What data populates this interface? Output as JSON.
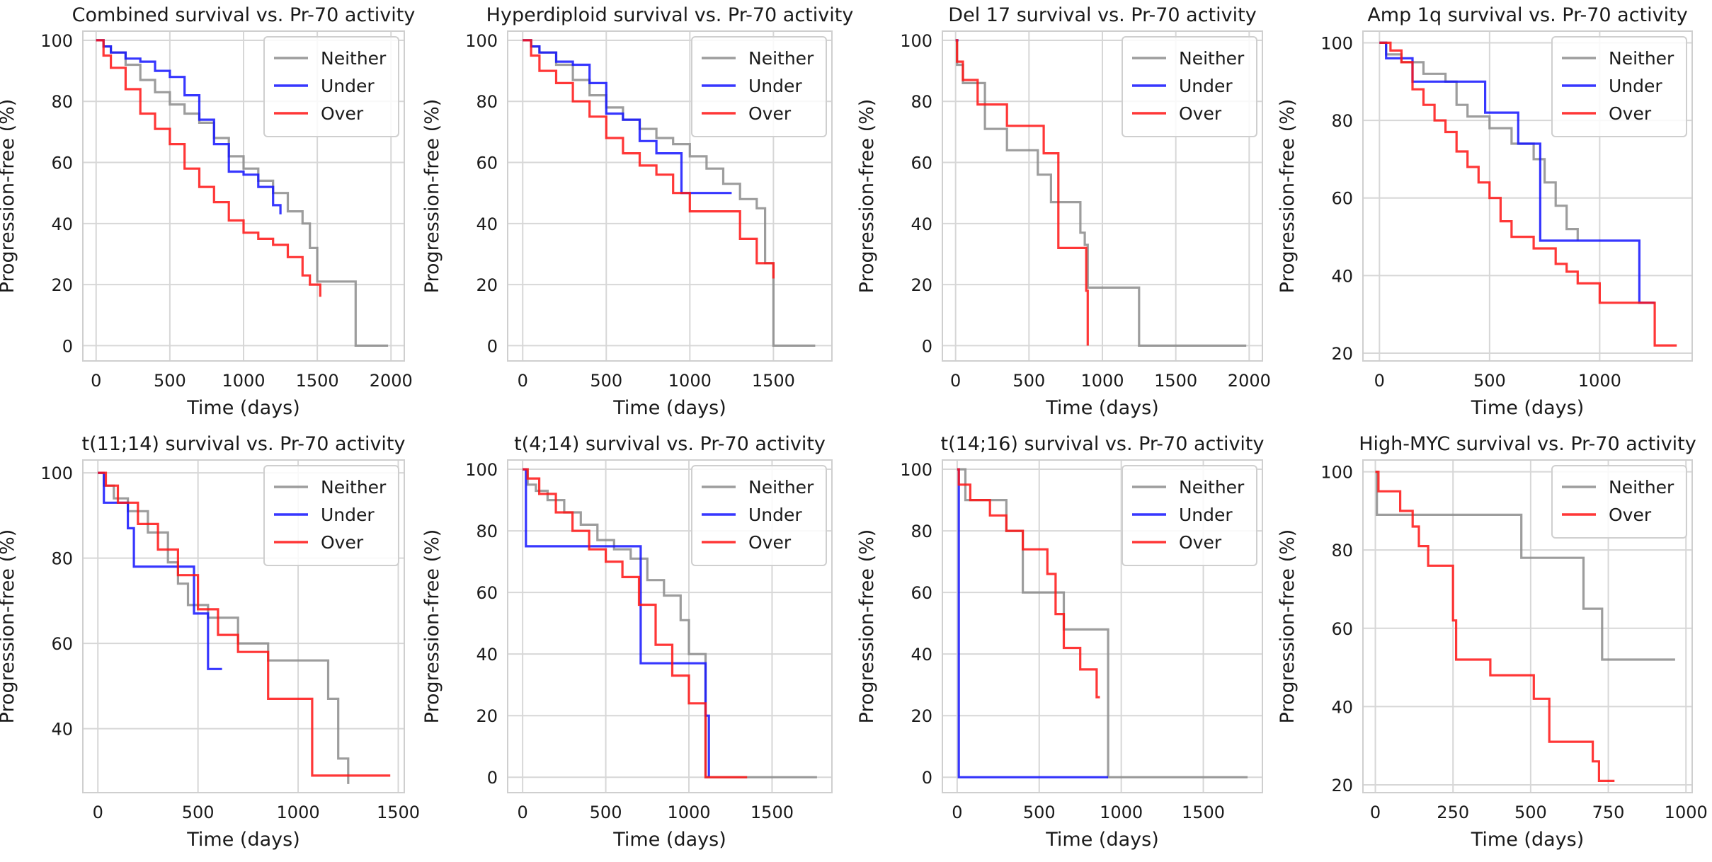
{
  "colors": {
    "neither": "#8c8c8c",
    "under": "#1414ff",
    "over": "#ff1414",
    "grid": "#d7d7d7",
    "frame": "#cfcfcf"
  },
  "chart_data": [
    {
      "type": "line",
      "step": true,
      "title": "Combined survival vs. Pr-70 activity",
      "xlabel": "Time (days)",
      "ylabel": "Progression-free (%)",
      "xlim": [
        -90,
        2090
      ],
      "ylim": [
        -5,
        103
      ],
      "xticks": [
        0,
        500,
        1000,
        1500,
        2000
      ],
      "yticks": [
        0,
        20,
        40,
        60,
        80,
        100
      ],
      "legend": [
        "Neither",
        "Under",
        "Over"
      ],
      "legend_position": "top-right",
      "series": [
        {
          "name": "Neither",
          "x": [
            0,
            50,
            100,
            200,
            300,
            400,
            500,
            600,
            700,
            800,
            900,
            1000,
            1100,
            1200,
            1300,
            1400,
            1450,
            1500,
            1750,
            1760,
            1980
          ],
          "y": [
            100,
            98,
            96,
            92,
            87,
            83,
            79,
            76,
            73,
            68,
            62,
            58,
            54,
            50,
            44,
            40,
            32,
            21,
            21,
            0,
            0
          ]
        },
        {
          "name": "Under",
          "x": [
            0,
            50,
            100,
            200,
            300,
            400,
            500,
            600,
            700,
            800,
            900,
            1000,
            1100,
            1200,
            1250
          ],
          "y": [
            100,
            98,
            96,
            94,
            93,
            90,
            88,
            82,
            74,
            66,
            57,
            56,
            52,
            46,
            43
          ]
        },
        {
          "name": "Over",
          "x": [
            0,
            50,
            100,
            200,
            300,
            400,
            500,
            600,
            700,
            800,
            900,
            1000,
            1100,
            1200,
            1300,
            1400,
            1450,
            1520
          ],
          "y": [
            100,
            95,
            91,
            84,
            76,
            71,
            66,
            58,
            52,
            47,
            41,
            37,
            35,
            33,
            29,
            23,
            20,
            16
          ]
        }
      ]
    },
    {
      "type": "line",
      "step": true,
      "title": "Hyperdiploid survival vs. Pr-70 activity",
      "xlabel": "Time (days)",
      "ylabel": "Progression-free (%)",
      "xlim": [
        -90,
        1850
      ],
      "ylim": [
        -5,
        103
      ],
      "xticks": [
        0,
        500,
        1000,
        1500
      ],
      "yticks": [
        0,
        20,
        40,
        60,
        80,
        100
      ],
      "legend": [
        "Neither",
        "Under",
        "Over"
      ],
      "legend_position": "top-right",
      "series": [
        {
          "name": "Neither",
          "x": [
            0,
            50,
            100,
            200,
            300,
            400,
            500,
            600,
            700,
            800,
            900,
            1000,
            1100,
            1200,
            1300,
            1400,
            1450,
            1500,
            1750
          ],
          "y": [
            100,
            98,
            96,
            92,
            87,
            82,
            78,
            74,
            71,
            68,
            66,
            62,
            58,
            53,
            48,
            45,
            27,
            0,
            0
          ]
        },
        {
          "name": "Under",
          "x": [
            0,
            50,
            100,
            200,
            300,
            400,
            500,
            600,
            700,
            800,
            900,
            950,
            1250
          ],
          "y": [
            100,
            98,
            96,
            93,
            92,
            86,
            76,
            74,
            67,
            63,
            63,
            50,
            50
          ]
        },
        {
          "name": "Over",
          "x": [
            0,
            50,
            100,
            200,
            300,
            400,
            500,
            600,
            700,
            800,
            900,
            1000,
            1100,
            1200,
            1300,
            1400,
            1500
          ],
          "y": [
            100,
            95,
            90,
            86,
            80,
            75,
            68,
            63,
            59,
            56,
            50,
            44,
            44,
            44,
            35,
            27,
            22
          ]
        }
      ]
    },
    {
      "type": "line",
      "step": true,
      "title": "Del 17 survival vs. Pr-70 activity",
      "xlabel": "Time (days)",
      "ylabel": "Progression-free (%)",
      "xlim": [
        -90,
        2090
      ],
      "ylim": [
        -5,
        103
      ],
      "xticks": [
        0,
        500,
        1000,
        1500,
        2000
      ],
      "yticks": [
        0,
        20,
        40,
        60,
        80,
        100
      ],
      "legend": [
        "Neither",
        "Under",
        "Over"
      ],
      "legend_position": "top-right",
      "series": [
        {
          "name": "Neither",
          "x": [
            0,
            10,
            50,
            200,
            350,
            560,
            650,
            850,
            880,
            900,
            1250,
            1980
          ],
          "y": [
            100,
            92,
            86,
            71,
            64,
            56,
            47,
            37,
            33,
            19,
            0,
            0
          ]
        },
        {
          "name": "Under",
          "x": [
            0,
            5,
            20
          ],
          "y": [
            100,
            100,
            100
          ]
        },
        {
          "name": "Over",
          "x": [
            0,
            10,
            50,
            150,
            350,
            600,
            700,
            890,
            900
          ],
          "y": [
            100,
            93,
            87,
            79,
            72,
            63,
            32,
            18,
            0
          ]
        }
      ]
    },
    {
      "type": "line",
      "step": true,
      "title": "Amp 1q survival vs. Pr-70 activity",
      "xlabel": "Time (days)",
      "ylabel": "Progression-free (%)",
      "xlim": [
        -75,
        1420
      ],
      "ylim": [
        18,
        103
      ],
      "xticks": [
        0,
        500,
        1000
      ],
      "yticks": [
        20,
        40,
        60,
        80,
        100
      ],
      "legend": [
        "Neither",
        "Under",
        "Over"
      ],
      "legend_position": "top-right",
      "series": [
        {
          "name": "Neither",
          "x": [
            0,
            30,
            100,
            200,
            300,
            350,
            400,
            500,
            600,
            700,
            750,
            800,
            850,
            900
          ],
          "y": [
            100,
            97,
            95,
            92,
            90,
            84,
            81,
            78,
            74,
            70,
            64,
            58,
            52,
            49
          ]
        },
        {
          "name": "Under",
          "x": [
            0,
            30,
            150,
            480,
            630,
            730,
            1180,
            1250
          ],
          "y": [
            100,
            96,
            90,
            82,
            74,
            49,
            33,
            33
          ]
        },
        {
          "name": "Over",
          "x": [
            0,
            50,
            100,
            150,
            200,
            250,
            300,
            350,
            400,
            450,
            500,
            550,
            600,
            700,
            800,
            850,
            900,
            1000,
            1100,
            1250,
            1350
          ],
          "y": [
            100,
            98,
            95,
            88,
            84,
            80,
            77,
            72,
            68,
            64,
            60,
            54,
            50,
            47,
            43,
            41,
            38,
            33,
            33,
            22,
            22
          ]
        }
      ]
    },
    {
      "type": "line",
      "step": true,
      "title": "t(11;14) survival vs. Pr-70 activity",
      "xlabel": "Time (days)",
      "ylabel": "Progression-free (%)",
      "xlim": [
        -75,
        1530
      ],
      "ylim": [
        25,
        103
      ],
      "xticks": [
        0,
        500,
        1000,
        1500
      ],
      "yticks": [
        40,
        60,
        80,
        100
      ],
      "legend": [
        "Neither",
        "Under",
        "Over"
      ],
      "legend_position": "top-right",
      "series": [
        {
          "name": "Neither",
          "x": [
            0,
            30,
            80,
            150,
            250,
            350,
            400,
            450,
            550,
            700,
            850,
            1150,
            1200,
            1250
          ],
          "y": [
            100,
            97,
            94,
            91,
            86,
            79,
            74,
            69,
            66,
            60,
            56,
            47,
            33,
            27
          ]
        },
        {
          "name": "Under",
          "x": [
            0,
            30,
            150,
            180,
            480,
            550,
            620
          ],
          "y": [
            100,
            93,
            87,
            78,
            67,
            54,
            54
          ]
        },
        {
          "name": "Over",
          "x": [
            0,
            40,
            100,
            200,
            300,
            400,
            500,
            600,
            700,
            850,
            1070,
            1460
          ],
          "y": [
            100,
            97,
            93,
            88,
            82,
            76,
            68,
            62,
            58,
            47,
            29,
            29
          ]
        }
      ]
    },
    {
      "type": "line",
      "step": true,
      "title": "t(4;14) survival vs. Pr-70 activity",
      "xlabel": "Time (days)",
      "ylabel": "Progression-free (%)",
      "xlim": [
        -90,
        1860
      ],
      "ylim": [
        -5,
        103
      ],
      "xticks": [
        0,
        500,
        1000,
        1500
      ],
      "yticks": [
        0,
        20,
        40,
        60,
        80,
        100
      ],
      "legend": [
        "Neither",
        "Under",
        "Over"
      ],
      "legend_position": "top-right",
      "series": [
        {
          "name": "Neither",
          "x": [
            0,
            30,
            80,
            150,
            250,
            350,
            450,
            550,
            650,
            750,
            850,
            950,
            1000,
            1100,
            1770
          ],
          "y": [
            100,
            95,
            93,
            90,
            86,
            82,
            77,
            74,
            71,
            64,
            59,
            51,
            40,
            0,
            0
          ]
        },
        {
          "name": "Under",
          "x": [
            0,
            20,
            710,
            1100,
            1120
          ],
          "y": [
            100,
            75,
            37,
            20,
            0
          ]
        },
        {
          "name": "Over",
          "x": [
            0,
            30,
            100,
            200,
            300,
            400,
            500,
            600,
            700,
            800,
            900,
            1000,
            1100,
            1350
          ],
          "y": [
            100,
            97,
            92,
            86,
            80,
            74,
            70,
            65,
            56,
            43,
            33,
            24,
            0,
            0
          ]
        }
      ]
    },
    {
      "type": "line",
      "step": true,
      "title": "t(14;16) survival vs. Pr-70 activity",
      "xlabel": "Time (days)",
      "ylabel": "Progression-free (%)",
      "xlim": [
        -90,
        1860
      ],
      "ylim": [
        -5,
        103
      ],
      "xticks": [
        0,
        500,
        1000,
        1500
      ],
      "yticks": [
        0,
        20,
        40,
        60,
        80,
        100
      ],
      "legend": [
        "Neither",
        "Under",
        "Over"
      ],
      "legend_position": "top-right",
      "series": [
        {
          "name": "Neither",
          "x": [
            0,
            50,
            300,
            400,
            650,
            900,
            920,
            1770
          ],
          "y": [
            100,
            90,
            80,
            60,
            48,
            48,
            0,
            0
          ]
        },
        {
          "name": "Under",
          "x": [
            0,
            10,
            920
          ],
          "y": [
            100,
            0,
            0
          ]
        },
        {
          "name": "Over",
          "x": [
            0,
            10,
            80,
            200,
            300,
            400,
            550,
            600,
            650,
            750,
            850,
            870
          ],
          "y": [
            100,
            95,
            90,
            85,
            80,
            74,
            66,
            53,
            42,
            35,
            26,
            26
          ]
        }
      ]
    },
    {
      "type": "line",
      "step": true,
      "title": "High-MYC survival vs. Pr-70 activity",
      "xlabel": "Time (days)",
      "ylabel": "Progression-free (%)",
      "xlim": [
        -40,
        1020
      ],
      "ylim": [
        18,
        103
      ],
      "xticks": [
        0,
        250,
        500,
        750,
        1000
      ],
      "yticks": [
        20,
        40,
        60,
        80,
        100
      ],
      "legend": [
        "Neither",
        "Over"
      ],
      "legend_position": "top-right",
      "series": [
        {
          "name": "Neither",
          "x": [
            0,
            5,
            470,
            670,
            730,
            965
          ],
          "y": [
            100,
            89,
            78,
            65,
            52,
            52
          ]
        },
        {
          "name": "Over",
          "x": [
            0,
            10,
            80,
            120,
            140,
            170,
            250,
            260,
            370,
            510,
            560,
            700,
            720,
            740,
            770
          ],
          "y": [
            100,
            95,
            90,
            86,
            81,
            76,
            62,
            52,
            48,
            42,
            31,
            26,
            21,
            21,
            21
          ]
        }
      ]
    }
  ]
}
